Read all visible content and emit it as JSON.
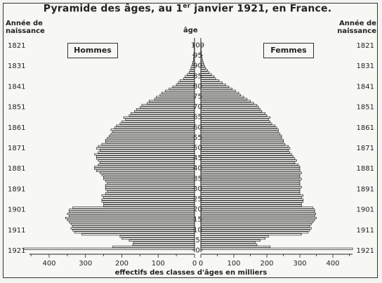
{
  "chart_data": {
    "type": "bar",
    "orientation": "horizontal-pyramid",
    "title_prefix": "Pyramide des âges, au 1",
    "title_sup": "er",
    "title_suffix": " janvier 1921, en France.",
    "left_header": [
      "Année de",
      "naissance"
    ],
    "right_header": [
      "Année de",
      "naissance"
    ],
    "age_header": "âge",
    "series": [
      {
        "name": "Hommes",
        "side": "left"
      },
      {
        "name": "Femmes",
        "side": "right"
      }
    ],
    "xlabel": "effectifs des classes d'âges en milliers",
    "x_ticks_left": [
      400,
      300,
      200,
      100,
      0
    ],
    "x_ticks_right": [
      0,
      100,
      200,
      300,
      400
    ],
    "xlim": [
      0,
      470
    ],
    "age_ticks": [
      100,
      95,
      90,
      85,
      80,
      75,
      70,
      65,
      60,
      55,
      50,
      45,
      40,
      35,
      30,
      25,
      20,
      15,
      10,
      5,
      0
    ],
    "birth_years": [
      "1821",
      "1831",
      "1841",
      "1851",
      "1861",
      "1871",
      "1881",
      "1891",
      "1901",
      "1911",
      "1921"
    ],
    "ages": [
      0,
      1,
      2,
      3,
      4,
      5,
      6,
      7,
      8,
      9,
      10,
      11,
      12,
      13,
      14,
      15,
      16,
      17,
      18,
      19,
      20,
      21,
      22,
      23,
      24,
      25,
      26,
      27,
      28,
      29,
      30,
      31,
      32,
      33,
      34,
      35,
      36,
      37,
      38,
      39,
      40,
      41,
      42,
      43,
      44,
      45,
      46,
      47,
      48,
      49,
      50,
      51,
      52,
      53,
      54,
      55,
      56,
      57,
      58,
      59,
      60,
      61,
      62,
      63,
      64,
      65,
      66,
      67,
      68,
      69,
      70,
      71,
      72,
      73,
      74,
      75,
      76,
      77,
      78,
      79,
      80,
      81,
      82,
      83,
      84,
      85,
      86,
      87,
      88,
      89,
      90,
      91,
      92,
      93,
      94,
      95,
      96,
      97,
      98,
      99,
      100
    ],
    "hommes": [
      470,
      225,
      170,
      168,
      180,
      200,
      205,
      310,
      330,
      335,
      340,
      335,
      340,
      345,
      350,
      355,
      345,
      350,
      345,
      345,
      335,
      250,
      250,
      255,
      255,
      250,
      255,
      245,
      240,
      245,
      245,
      245,
      240,
      245,
      250,
      250,
      255,
      260,
      270,
      275,
      275,
      265,
      260,
      265,
      270,
      270,
      275,
      265,
      260,
      270,
      265,
      255,
      245,
      245,
      240,
      235,
      230,
      225,
      230,
      220,
      215,
      205,
      200,
      190,
      195,
      180,
      175,
      165,
      160,
      150,
      145,
      130,
      125,
      110,
      105,
      95,
      90,
      80,
      70,
      60,
      50,
      45,
      40,
      30,
      26,
      20,
      15,
      12,
      10,
      8,
      6,
      5,
      3,
      3,
      2,
      2,
      1,
      1,
      1,
      1,
      1
    ],
    "femmes": [
      460,
      210,
      170,
      165,
      180,
      195,
      205,
      305,
      325,
      330,
      335,
      330,
      335,
      340,
      345,
      350,
      345,
      348,
      345,
      345,
      340,
      305,
      305,
      310,
      310,
      305,
      310,
      300,
      300,
      300,
      305,
      300,
      300,
      300,
      305,
      300,
      300,
      305,
      300,
      300,
      300,
      295,
      285,
      290,
      285,
      280,
      275,
      270,
      265,
      270,
      265,
      255,
      250,
      250,
      245,
      245,
      240,
      235,
      235,
      230,
      225,
      215,
      210,
      205,
      210,
      200,
      195,
      185,
      180,
      175,
      170,
      160,
      150,
      140,
      130,
      120,
      115,
      105,
      95,
      85,
      75,
      65,
      55,
      45,
      40,
      32,
      25,
      20,
      15,
      12,
      9,
      7,
      5,
      4,
      3,
      2,
      2,
      1,
      1,
      1,
      1
    ]
  },
  "colors": {
    "ink": "#222222",
    "bar_fill": "#f7f7f4",
    "paper": "#f7f7f4"
  }
}
